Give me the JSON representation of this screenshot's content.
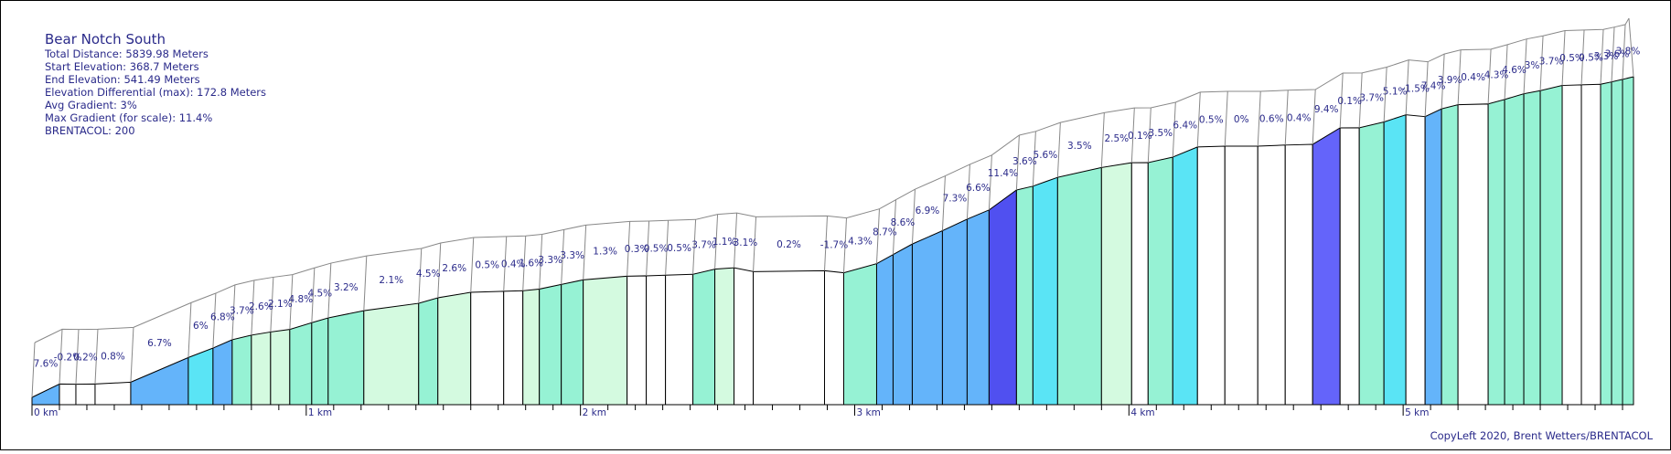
{
  "info": {
    "title": "Bear Notch South",
    "total_distance": "Total Distance: 5839.98 Meters",
    "start_elevation": "Start Elevation: 368.7 Meters",
    "end_elevation": "End Elevation: 541.49 Meters",
    "elevation_differential": "Elevation Differential (max): 172.8 Meters",
    "avg_gradient": "Avg Gradient: 3%",
    "max_gradient": "Max Gradient (for scale): 11.4%",
    "brentacol": "BRENTACOL: 200"
  },
  "credit": "CopyLeft 2020, Brent Wetters/BRENTACOL",
  "chart_data": {
    "type": "area",
    "x_unit": "km",
    "xlim": [
      0,
      5.84
    ],
    "ylim": [
      368.7,
      541.49
    ],
    "ticks": [
      "0 km",
      "1 km",
      "2 km",
      "3 km",
      "4 km",
      "5 km"
    ],
    "colors": {
      "outline": "#000000",
      "gradient_lt1": "#ffffff",
      "gradient_1_3": "#d4fae0",
      "gradient_3_5": "#96f2d4",
      "gradient_5_6": "#5ae4f5",
      "gradient_6_9": "#64b4fa",
      "gradient_9_11": "#6464fa",
      "gradient_11plus": "#5050f0"
    },
    "segments": [
      {
        "start": 0.0,
        "end": 0.1,
        "gradient": 7.6,
        "label": "7.6%"
      },
      {
        "start": 0.1,
        "end": 0.16,
        "gradient": -0.2,
        "label": "-0.2%"
      },
      {
        "start": 0.16,
        "end": 0.23,
        "gradient": 0.2,
        "label": "0.2%"
      },
      {
        "start": 0.23,
        "end": 0.36,
        "gradient": 0.8,
        "label": "0.8%"
      },
      {
        "start": 0.36,
        "end": 0.57,
        "gradient": 6.7,
        "label": "6.7%"
      },
      {
        "start": 0.57,
        "end": 0.66,
        "gradient": 6.0,
        "label": "6%"
      },
      {
        "start": 0.66,
        "end": 0.73,
        "gradient": 6.8,
        "label": "6.8%"
      },
      {
        "start": 0.73,
        "end": 0.8,
        "gradient": 3.7,
        "label": "3.7%"
      },
      {
        "start": 0.8,
        "end": 0.87,
        "gradient": 2.6,
        "label": "2.6%"
      },
      {
        "start": 0.87,
        "end": 0.94,
        "gradient": 2.1,
        "label": "2.1%"
      },
      {
        "start": 0.94,
        "end": 1.02,
        "gradient": 4.8,
        "label": "4.8%"
      },
      {
        "start": 1.02,
        "end": 1.08,
        "gradient": 4.5,
        "label": "4.5%"
      },
      {
        "start": 1.08,
        "end": 1.21,
        "gradient": 3.2,
        "label": "3.2%"
      },
      {
        "start": 1.21,
        "end": 1.41,
        "gradient": 2.1,
        "label": "2.1%"
      },
      {
        "start": 1.41,
        "end": 1.48,
        "gradient": 4.5,
        "label": "4.5%"
      },
      {
        "start": 1.48,
        "end": 1.6,
        "gradient": 2.6,
        "label": "2.6%"
      },
      {
        "start": 1.6,
        "end": 1.72,
        "gradient": 0.5,
        "label": "0.5%"
      },
      {
        "start": 1.72,
        "end": 1.79,
        "gradient": 0.4,
        "label": "0.4%"
      },
      {
        "start": 1.79,
        "end": 1.85,
        "gradient": 1.6,
        "label": "1.6%"
      },
      {
        "start": 1.85,
        "end": 1.93,
        "gradient": 3.3,
        "label": "3.3%"
      },
      {
        "start": 1.93,
        "end": 2.01,
        "gradient": 3.3,
        "label": "3.3%"
      },
      {
        "start": 2.01,
        "end": 2.17,
        "gradient": 1.3,
        "label": "1.3%"
      },
      {
        "start": 2.17,
        "end": 2.24,
        "gradient": 0.3,
        "label": "0.3%"
      },
      {
        "start": 2.24,
        "end": 2.31,
        "gradient": 0.5,
        "label": "0.5%"
      },
      {
        "start": 2.31,
        "end": 2.41,
        "gradient": 0.5,
        "label": "0.5%"
      },
      {
        "start": 2.41,
        "end": 2.49,
        "gradient": 3.7,
        "label": "3.7%"
      },
      {
        "start": 2.49,
        "end": 2.56,
        "gradient": 1.1,
        "label": "1.1%"
      },
      {
        "start": 2.56,
        "end": 2.63,
        "gradient": -3.1,
        "label": "-3.1%"
      },
      {
        "start": 2.63,
        "end": 2.89,
        "gradient": 0.2,
        "label": "0.2%"
      },
      {
        "start": 2.89,
        "end": 2.96,
        "gradient": -1.7,
        "label": "-1.7%"
      },
      {
        "start": 2.96,
        "end": 3.08,
        "gradient": 4.3,
        "label": "4.3%"
      },
      {
        "start": 3.08,
        "end": 3.14,
        "gradient": 8.7,
        "label": "8.7%"
      },
      {
        "start": 3.14,
        "end": 3.21,
        "gradient": 8.6,
        "label": "8.6%"
      },
      {
        "start": 3.21,
        "end": 3.32,
        "gradient": 6.9,
        "label": "6.9%"
      },
      {
        "start": 3.32,
        "end": 3.41,
        "gradient": 7.3,
        "label": "7.3%"
      },
      {
        "start": 3.41,
        "end": 3.49,
        "gradient": 6.6,
        "label": "6.6%"
      },
      {
        "start": 3.49,
        "end": 3.59,
        "gradient": 11.4,
        "label": "11.4%"
      },
      {
        "start": 3.59,
        "end": 3.65,
        "gradient": 3.6,
        "label": "3.6%"
      },
      {
        "start": 3.65,
        "end": 3.74,
        "gradient": 5.6,
        "label": "5.6%"
      },
      {
        "start": 3.74,
        "end": 3.9,
        "gradient": 3.5,
        "label": "3.5%"
      },
      {
        "start": 3.9,
        "end": 4.01,
        "gradient": 2.5,
        "label": "2.5%"
      },
      {
        "start": 4.01,
        "end": 4.07,
        "gradient": 0.1,
        "label": "0.1%"
      },
      {
        "start": 4.07,
        "end": 4.16,
        "gradient": 3.5,
        "label": "3.5%"
      },
      {
        "start": 4.16,
        "end": 4.25,
        "gradient": 6.4,
        "label": "6.4%"
      },
      {
        "start": 4.25,
        "end": 4.35,
        "gradient": 0.5,
        "label": "0.5%"
      },
      {
        "start": 4.35,
        "end": 4.47,
        "gradient": 0.0,
        "label": "0%"
      },
      {
        "start": 4.47,
        "end": 4.57,
        "gradient": 0.6,
        "label": "0.6%"
      },
      {
        "start": 4.57,
        "end": 4.67,
        "gradient": 0.4,
        "label": "0.4%"
      },
      {
        "start": 4.67,
        "end": 4.77,
        "gradient": 9.4,
        "label": "9.4%"
      },
      {
        "start": 4.77,
        "end": 4.84,
        "gradient": 0.1,
        "label": "0.1%"
      },
      {
        "start": 4.84,
        "end": 4.93,
        "gradient": 3.7,
        "label": "3.7%"
      },
      {
        "start": 4.93,
        "end": 5.01,
        "gradient": 5.1,
        "label": "5.1%"
      },
      {
        "start": 5.01,
        "end": 5.08,
        "gradient": -1.5,
        "label": "-1.5%"
      },
      {
        "start": 5.08,
        "end": 5.14,
        "gradient": 7.4,
        "label": "7.4%"
      },
      {
        "start": 5.14,
        "end": 5.2,
        "gradient": 3.9,
        "label": "3.9%"
      },
      {
        "start": 5.2,
        "end": 5.31,
        "gradient": 0.4,
        "label": "0.4%"
      },
      {
        "start": 5.31,
        "end": 5.37,
        "gradient": 4.3,
        "label": "4.3%"
      },
      {
        "start": 5.37,
        "end": 5.44,
        "gradient": 4.6,
        "label": "4.6%"
      },
      {
        "start": 5.44,
        "end": 5.5,
        "gradient": 3.0,
        "label": "3%"
      },
      {
        "start": 5.5,
        "end": 5.58,
        "gradient": 3.7,
        "label": "3.7%"
      },
      {
        "start": 5.58,
        "end": 5.65,
        "gradient": 0.5,
        "label": "0.5%"
      },
      {
        "start": 5.65,
        "end": 5.72,
        "gradient": 0.5,
        "label": "0.5%"
      },
      {
        "start": 5.72,
        "end": 5.76,
        "gradient": 3.3,
        "label": "3.3%"
      },
      {
        "start": 5.76,
        "end": 5.8,
        "gradient": 3.6,
        "label": "3.6%"
      },
      {
        "start": 5.8,
        "end": 5.84,
        "gradient": 3.8,
        "label": "3.8%"
      }
    ]
  }
}
